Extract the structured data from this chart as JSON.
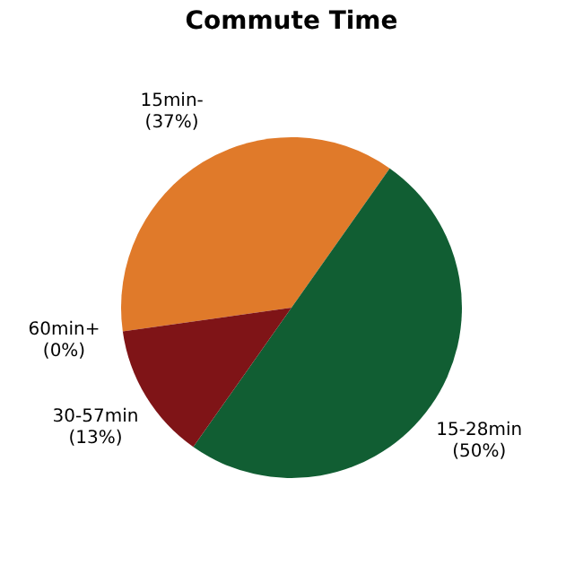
{
  "chart_data": {
    "type": "pie",
    "title": "Commute Time",
    "categories": [
      "15min-",
      "15-28min",
      "30-57min",
      "60min+"
    ],
    "values": [
      37,
      50,
      13,
      0
    ],
    "value_labels": [
      "(37%)",
      "(50%)",
      "(13%)",
      "(0%)"
    ],
    "colors": [
      "#e07a2a",
      "#115e33",
      "#7f1417",
      "#9a3a1a"
    ],
    "legend": false
  }
}
